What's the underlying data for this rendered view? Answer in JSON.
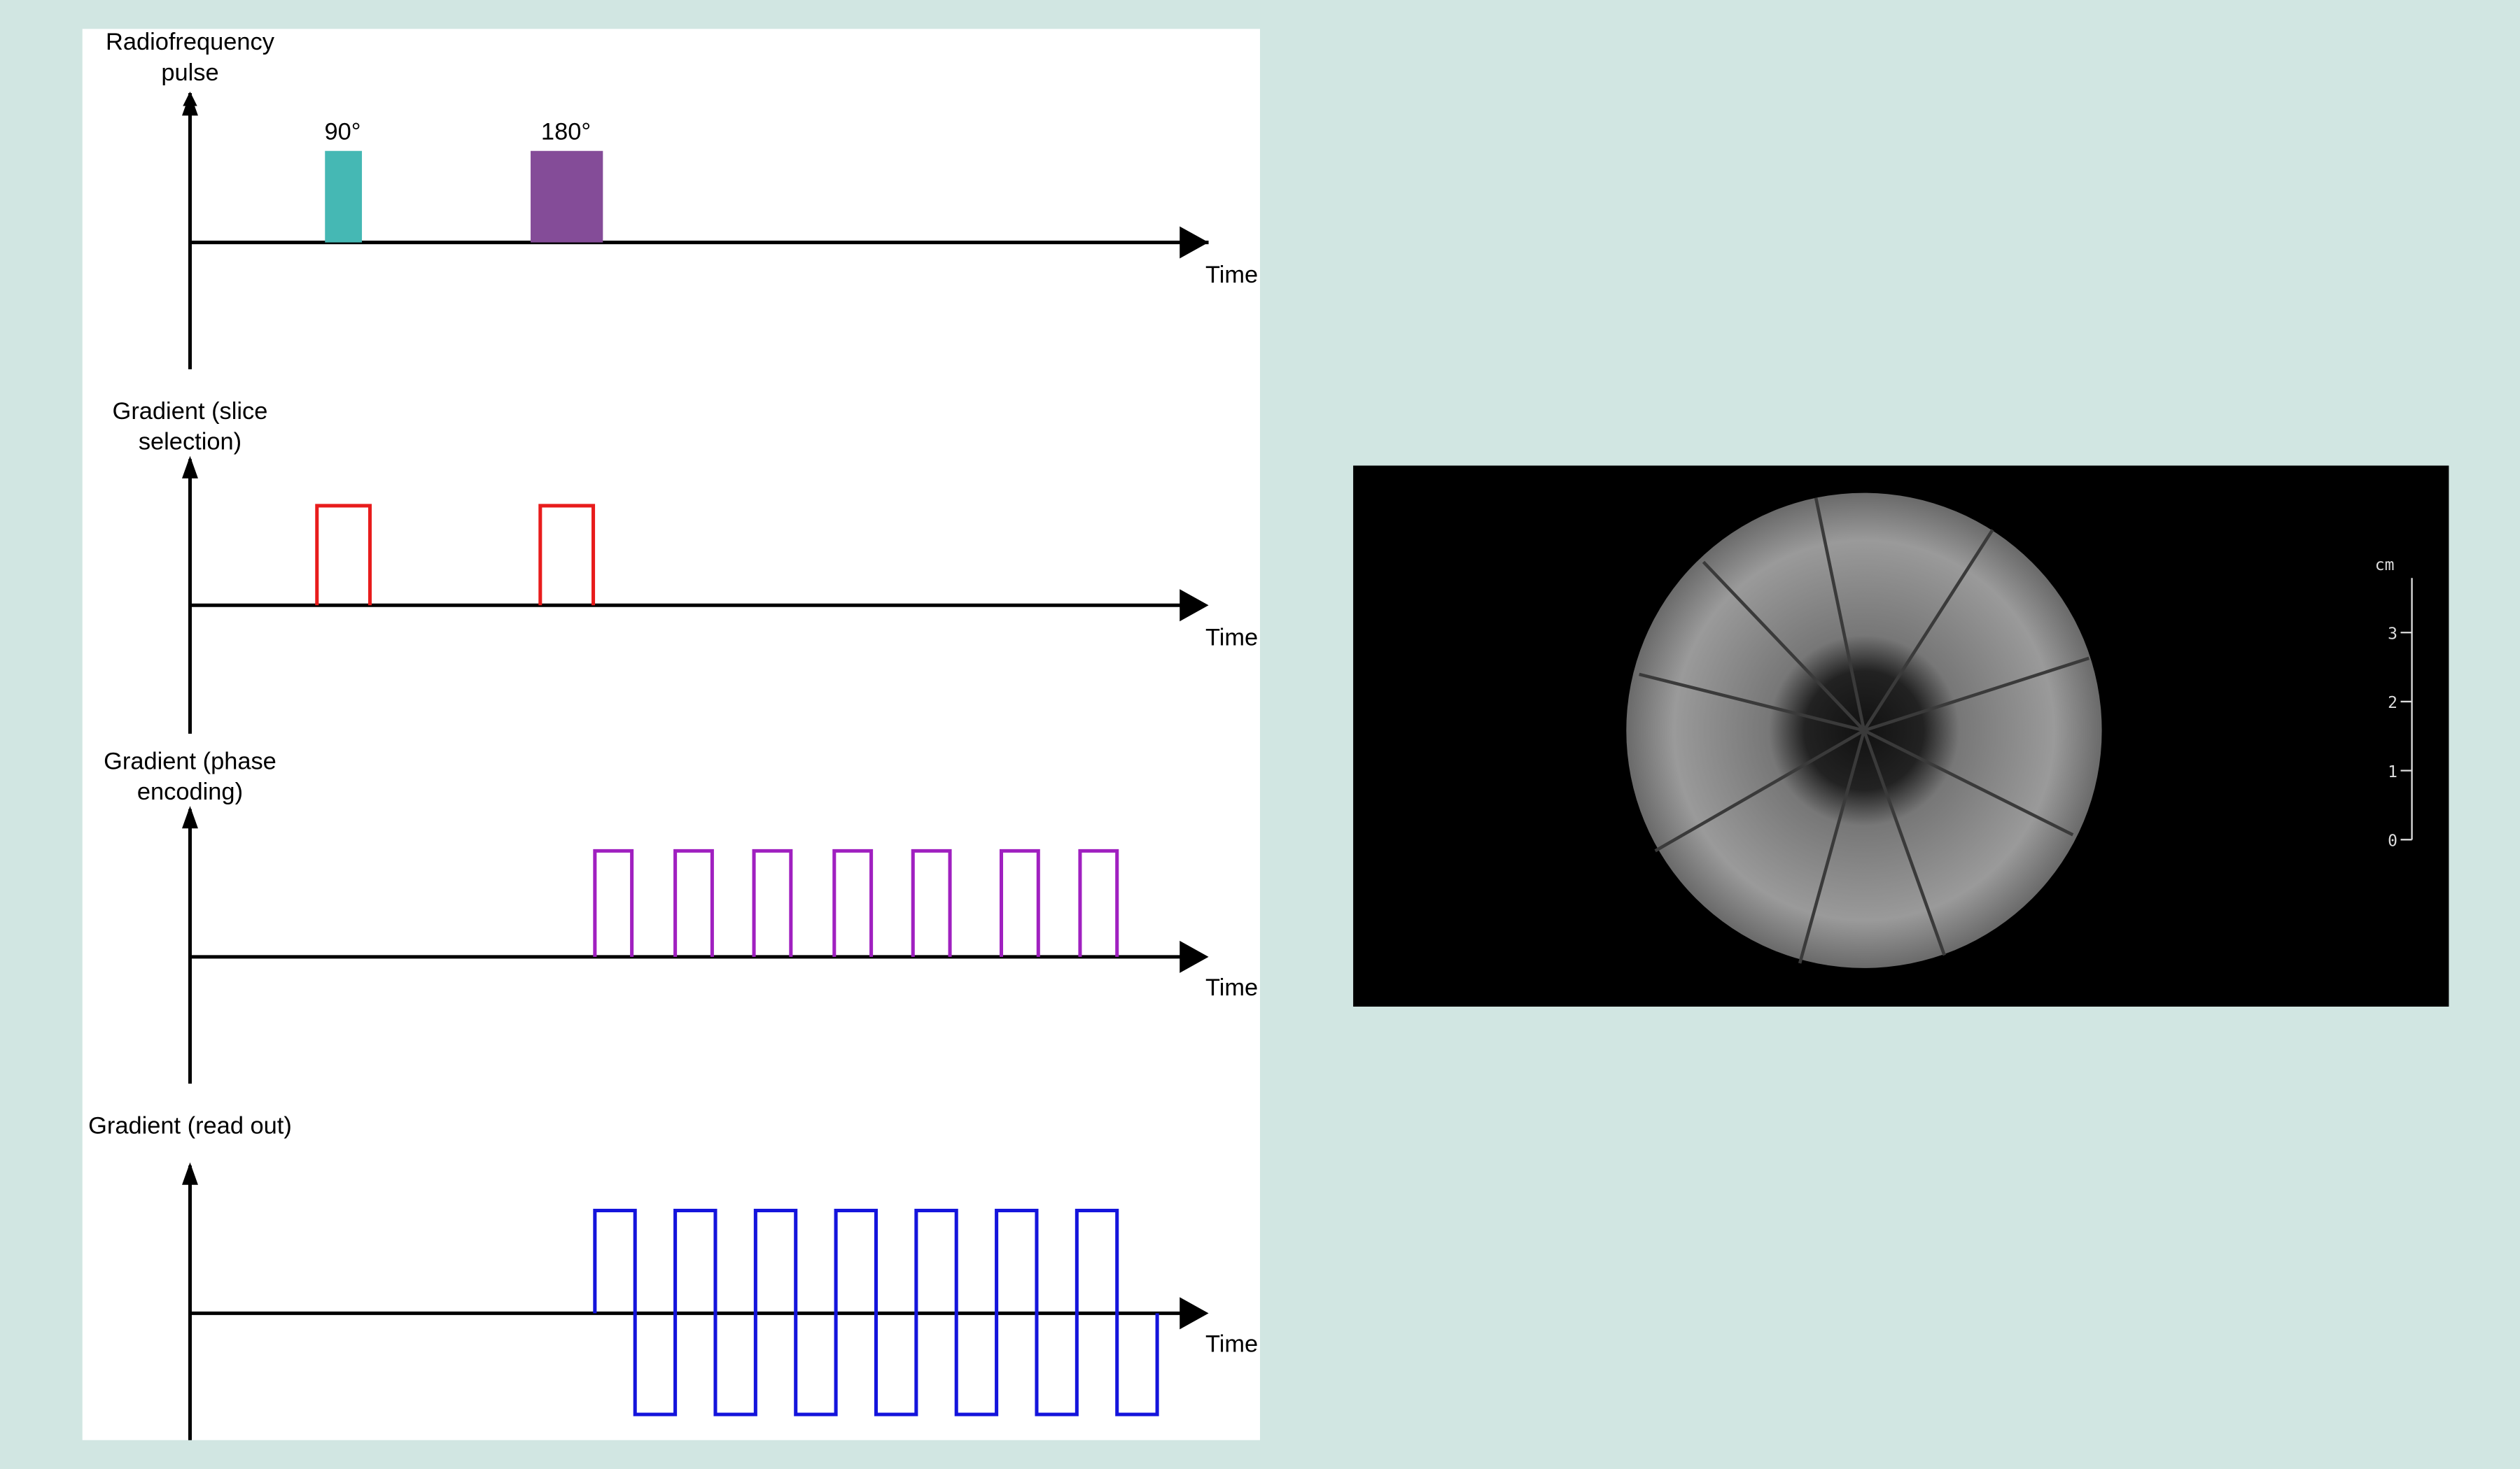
{
  "panels": [
    {
      "label_lines": [
        "Radiofrequency",
        "pulse"
      ],
      "time_label": "Time",
      "pulse_labels": [
        "90°",
        "180°"
      ]
    },
    {
      "label_lines": [
        "Gradient (slice",
        "selection)"
      ],
      "time_label": "Time"
    },
    {
      "label_lines": [
        "Gradient (phase",
        "encoding)"
      ],
      "time_label": "Time"
    },
    {
      "label_lines": [
        "Gradient (read out)"
      ],
      "time_label": "Time"
    }
  ],
  "image": {
    "scale_unit": "cm",
    "scale_labels": [
      "3",
      "2",
      "1",
      "0"
    ]
  }
}
